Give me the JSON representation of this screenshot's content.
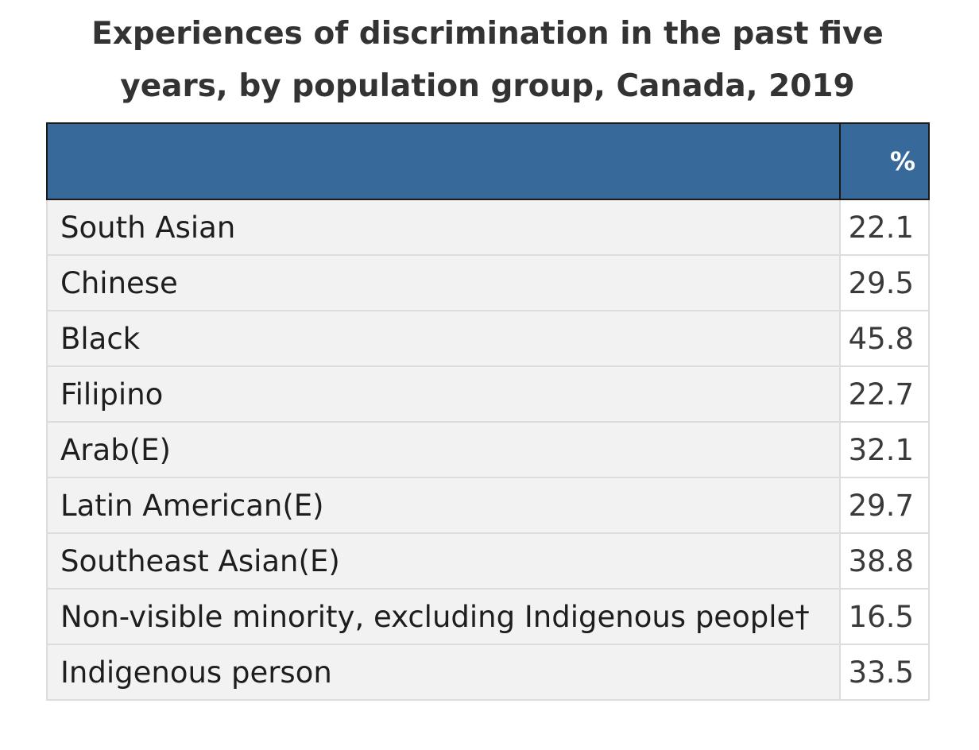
{
  "chart_data": {
    "type": "table",
    "title": "Experiences of discrimination in the past five years, by population group, Canada, 2019",
    "columns": [
      "",
      "%"
    ],
    "rows": [
      {
        "label": "South Asian",
        "value": "22.1"
      },
      {
        "label": "Chinese",
        "value": "29.5"
      },
      {
        "label": "Black",
        "value": "45.8"
      },
      {
        "label": "Filipino",
        "value": "22.7"
      },
      {
        "label": "Arab(E)",
        "value": "32.1"
      },
      {
        "label": "Latin American(E)",
        "value": "29.7"
      },
      {
        "label": "Southeast Asian(E)",
        "value": "38.8"
      },
      {
        "label": "Non-visible minority, excluding Indigenous people†",
        "value": "16.5"
      },
      {
        "label": "Indigenous person",
        "value": "33.5"
      }
    ]
  },
  "colors": {
    "header_background": "#38699b",
    "header_text": "#ffffff",
    "row_background": "#f2f2f2",
    "value_background": "#ffffff",
    "grid_line": "#dddddd"
  }
}
